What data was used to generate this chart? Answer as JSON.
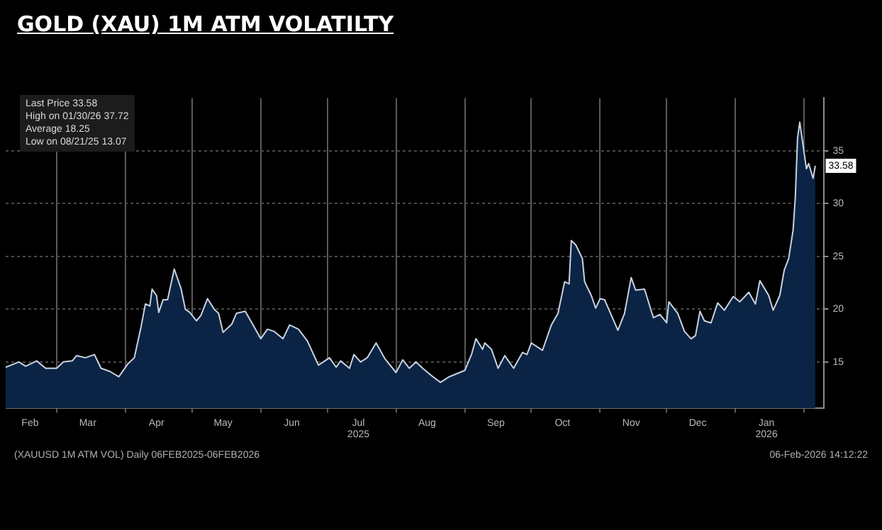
{
  "chart_data": {
    "type": "area",
    "title": "GOLD (XAU) 1M ATM VOLATILTY",
    "x": [
      "2025-02-06",
      "2025-02-12",
      "2025-02-15",
      "2025-02-20",
      "2025-02-24",
      "2025-03-01",
      "2025-03-04",
      "2025-03-08",
      "2025-03-10",
      "2025-03-14",
      "2025-03-18",
      "2025-03-21",
      "2025-03-25",
      "2025-03-29",
      "2025-04-02",
      "2025-04-05",
      "2025-04-08",
      "2025-04-10",
      "2025-04-12",
      "2025-04-13",
      "2025-04-15",
      "2025-04-16",
      "2025-04-18",
      "2025-04-20",
      "2025-04-23",
      "2025-04-26",
      "2025-04-28",
      "2025-04-30",
      "2025-05-03",
      "2025-05-05",
      "2025-05-08",
      "2025-05-11",
      "2025-05-13",
      "2025-05-15",
      "2025-05-19",
      "2025-05-21",
      "2025-05-25",
      "2025-05-28",
      "2025-06-01",
      "2025-06-04",
      "2025-06-07",
      "2025-06-11",
      "2025-06-14",
      "2025-06-18",
      "2025-06-22",
      "2025-06-27",
      "2025-07-02",
      "2025-07-05",
      "2025-07-07",
      "2025-07-11",
      "2025-07-13",
      "2025-07-16",
      "2025-07-19",
      "2025-07-23",
      "2025-07-27",
      "2025-08-01",
      "2025-08-04",
      "2025-08-07",
      "2025-08-10",
      "2025-08-13",
      "2025-08-17",
      "2025-08-21",
      "2025-08-25",
      "2025-09-01",
      "2025-09-04",
      "2025-09-06",
      "2025-09-09",
      "2025-09-10",
      "2025-09-13",
      "2025-09-16",
      "2025-09-19",
      "2025-09-23",
      "2025-09-27",
      "2025-09-29",
      "2025-10-01",
      "2025-10-06",
      "2025-10-10",
      "2025-10-13",
      "2025-10-16",
      "2025-10-18",
      "2025-10-19",
      "2025-10-21",
      "2025-10-24",
      "2025-10-25",
      "2025-10-28",
      "2025-10-30",
      "2025-11-01",
      "2025-11-03",
      "2025-11-09",
      "2025-11-12",
      "2025-11-15",
      "2025-11-17",
      "2025-11-21",
      "2025-11-25",
      "2025-11-28",
      "2025-12-01",
      "2025-12-02",
      "2025-12-06",
      "2025-12-09",
      "2025-12-12",
      "2025-12-14",
      "2025-12-16",
      "2025-12-18",
      "2025-12-21",
      "2025-12-24",
      "2025-12-27",
      "2025-12-31",
      "2026-01-03",
      "2026-01-07",
      "2026-01-10",
      "2026-01-12",
      "2026-01-16",
      "2026-01-18",
      "2026-01-21",
      "2026-01-23",
      "2026-01-25",
      "2026-01-27",
      "2026-01-28",
      "2026-01-29",
      "2026-01-30",
      "2026-02-02",
      "2026-02-03",
      "2026-02-04",
      "2026-02-05",
      "2026-02-06"
    ],
    "series": [
      {
        "color": "#0b2445",
        "values": [
          14.5,
          15.0,
          14.6,
          15.1,
          14.4,
          14.4,
          15.0,
          15.1,
          15.6,
          15.4,
          15.7,
          14.4,
          14.1,
          13.6,
          14.8,
          15.4,
          18.3,
          20.5,
          20.3,
          21.9,
          21.3,
          19.7,
          20.9,
          20.9,
          23.8,
          22.0,
          20.0,
          19.7,
          18.9,
          19.4,
          21.0,
          20.0,
          19.6,
          17.8,
          18.6,
          19.6,
          19.8,
          18.7,
          17.2,
          18.1,
          17.9,
          17.2,
          18.5,
          18.1,
          17.0,
          14.7,
          15.4,
          14.5,
          15.1,
          14.4,
          15.7,
          15.0,
          15.4,
          16.8,
          15.3,
          14.0,
          15.2,
          14.4,
          15.0,
          14.4,
          13.7,
          13.07,
          13.6,
          14.2,
          15.7,
          17.2,
          16.2,
          16.8,
          16.2,
          14.4,
          15.6,
          14.4,
          15.9,
          15.7,
          16.8,
          16.1,
          18.5,
          19.6,
          22.6,
          22.4,
          26.5,
          26.1,
          24.8,
          22.6,
          21.3,
          20.1,
          21.0,
          20.9,
          18.0,
          19.6,
          23.0,
          21.8,
          21.9,
          19.2,
          19.5,
          18.7,
          20.7,
          19.6,
          17.9,
          17.2,
          17.5,
          19.8,
          18.9,
          18.7,
          20.6,
          19.9,
          21.2,
          20.7,
          21.6,
          20.5,
          22.7,
          21.3,
          19.9,
          21.3,
          23.7,
          24.8,
          27.5,
          30.6,
          36.2,
          37.72,
          33.3,
          33.8,
          33.1,
          32.4,
          33.58
        ]
      }
    ],
    "xlim": [
      "2025-02-06",
      "2026-02-10"
    ],
    "xticks": [
      {
        "value": "2025-02-17",
        "label": "Feb"
      },
      {
        "value": "2025-03-01",
        "label": null
      },
      {
        "value": "2025-03-15",
        "label": "Mar"
      },
      {
        "value": "2025-04-01",
        "label": null
      },
      {
        "value": "2025-04-15",
        "label": "Apr"
      },
      {
        "value": "2025-05-01",
        "label": null
      },
      {
        "value": "2025-05-15",
        "label": "May"
      },
      {
        "value": "2025-06-01",
        "label": null
      },
      {
        "value": "2025-06-15",
        "label": "Jun"
      },
      {
        "value": "2025-07-01",
        "label": null
      },
      {
        "value": "2025-07-15",
        "label": "Jul\n2025"
      },
      {
        "value": "2025-08-01",
        "label": null
      },
      {
        "value": "2025-08-15",
        "label": "Aug"
      },
      {
        "value": "2025-09-01",
        "label": null
      },
      {
        "value": "2025-09-15",
        "label": "Sep"
      },
      {
        "value": "2025-10-01",
        "label": null
      },
      {
        "value": "2025-10-15",
        "label": "Oct"
      },
      {
        "value": "2025-11-01",
        "label": null
      },
      {
        "value": "2025-11-15",
        "label": "Nov"
      },
      {
        "value": "2025-12-01",
        "label": null
      },
      {
        "value": "2025-12-15",
        "label": "Dec"
      },
      {
        "value": "2026-01-01",
        "label": null
      },
      {
        "value": "2026-01-15",
        "label": "Jan\n2026"
      },
      {
        "value": "2026-02-01",
        "label": null
      }
    ],
    "ylim": [
      10.6,
      40
    ],
    "yticks": [
      15,
      20,
      25,
      30,
      35
    ],
    "grid": true,
    "annotations": [
      "Last Price 33.58",
      "High on 01/30/26 37.72",
      "Average 18.25",
      "Low on 08/21/25 13.07",
      {
        "text": "33.58",
        "x": "2026-02-06",
        "y": 33.58
      },
      "(XAUUSD 1M ATM VOL) Daily 06FEB2025-06FEB2026",
      "06-Feb-2026 14:12:22"
    ]
  }
}
